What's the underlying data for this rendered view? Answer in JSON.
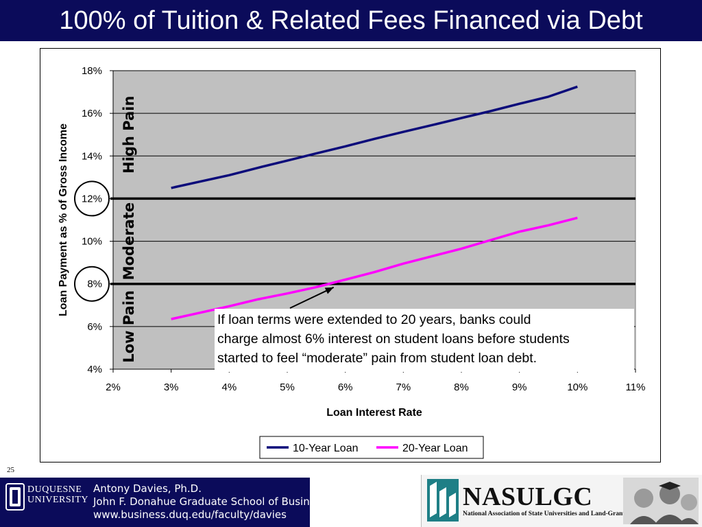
{
  "slide": {
    "title": "100% of Tuition & Related Fees Financed via Debt",
    "page_number": "25"
  },
  "footer": {
    "university_name": "DUQUESNE\nUNIVERSITY",
    "author_name": "Antony Davies, Ph.D.",
    "school": "John F. Donahue Graduate School of Business",
    "website": "www.business.duq.edu/faculty/davies",
    "org_acronym": "NASULGC",
    "org_full_name": "National Association of State Universities and Land-Grant Colleges"
  },
  "colors": {
    "title_bg": "#0b0b5a",
    "plot_bg": "#c0c0c0",
    "series_10yr": "#0b0b7a",
    "series_20yr": "#ff00ff"
  },
  "chart_data": {
    "type": "line",
    "title": "",
    "xlabel": "Loan Interest Rate",
    "ylabel": "Loan Payment as % of Gross Income",
    "xlim": [
      0.02,
      0.11
    ],
    "ylim": [
      0.04,
      0.18
    ],
    "x_ticks": [
      "2%",
      "3%",
      "4%",
      "5%",
      "6%",
      "7%",
      "8%",
      "9%",
      "10%",
      "11%"
    ],
    "y_ticks": [
      "4%",
      "6%",
      "8%",
      "10%",
      "12%",
      "14%",
      "16%",
      "18%"
    ],
    "grid": true,
    "legend_position": "bottom",
    "series": [
      {
        "name": "10-Year Loan",
        "color": "#0b0b7a",
        "x": [
          0.03,
          0.035,
          0.04,
          0.045,
          0.05,
          0.055,
          0.06,
          0.065,
          0.07,
          0.075,
          0.08,
          0.085,
          0.09,
          0.095,
          0.1
        ],
        "y": [
          0.125,
          0.128,
          0.131,
          0.1345,
          0.1378,
          0.1412,
          0.1445,
          0.148,
          0.1513,
          0.1545,
          0.1578,
          0.161,
          0.1645,
          0.1678,
          0.1725
        ]
      },
      {
        "name": "20-Year Loan",
        "color": "#ff00ff",
        "x": [
          0.03,
          0.035,
          0.04,
          0.045,
          0.05,
          0.055,
          0.06,
          0.065,
          0.07,
          0.075,
          0.08,
          0.085,
          0.09,
          0.095,
          0.1
        ],
        "y": [
          0.0635,
          0.0665,
          0.0695,
          0.0728,
          0.0755,
          0.0785,
          0.082,
          0.0855,
          0.0895,
          0.093,
          0.0965,
          0.1005,
          0.1045,
          0.1075,
          0.111
        ]
      }
    ],
    "threshold_lines": [
      0.08,
      0.12
    ],
    "circled_ticks": [
      "8%",
      "12%"
    ],
    "zone_labels": [
      "Low Pain",
      "Moderate",
      "High Pain"
    ],
    "annotation": {
      "text": "If loan terms were extended to 20 years, banks could charge almost 6% interest on student loans before students started to feel “moderate” pain from student loan debt.",
      "lines": [
        "If loan terms were extended to 20 years, banks could",
        "charge almost 6% interest on student loans before students",
        "started to feel “moderate” pain from student loan debt."
      ],
      "arrow_target": {
        "x": 0.058,
        "y": 0.08
      }
    }
  }
}
